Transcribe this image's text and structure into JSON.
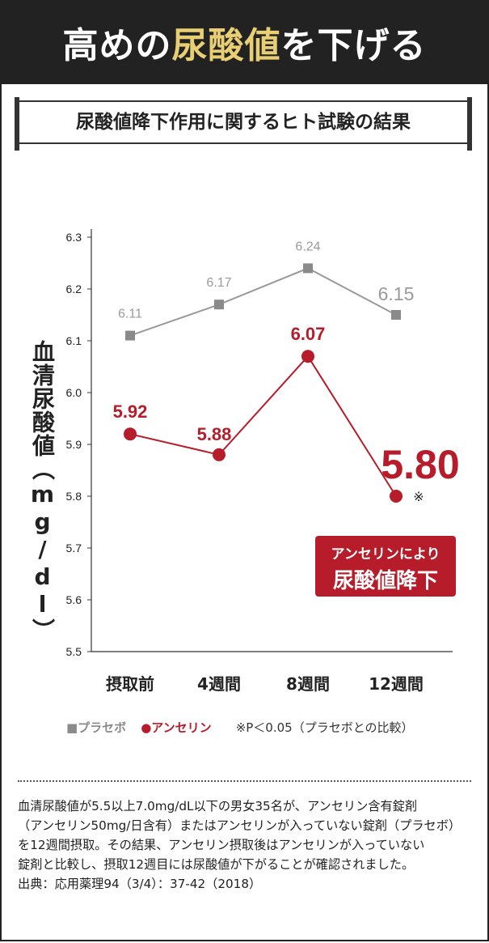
{
  "header": {
    "title_part1": "高めの",
    "title_part2": "尿酸値",
    "title_part3": "を下げる"
  },
  "subtitle": "尿酸値降下作用に関するヒト試験の結果",
  "callout": {
    "line1": "アンセリンにより",
    "line2": "尿酸値降下"
  },
  "legend": {
    "placebo": "■プラセボ",
    "anserine": "●アンセリン",
    "note": "※P＜0.05（プラセボとの比較）"
  },
  "note_lines": [
    "血清尿酸値が5.5以上7.0mg/dL以下の男女35名が、アンセリン含有錠剤",
    "（アンセリン50mg/日含有）またはアンセリンが入っていない錠剤（プラセボ）",
    "を12週間摂取。その結果、アンセリン摂取後はアンセリンが入っていない",
    "錠剤と比較し、摂取12週目には尿酸値が下がることが確認されました。",
    "出典：応用薬理94（3/4）：37-42（2018）"
  ],
  "colors": {
    "header_bg": "#222222",
    "accent_gold": "#e8cf73",
    "anserine": "#b61c2a",
    "placebo": "#8a8a8a"
  },
  "chart_data": {
    "type": "line",
    "categories": [
      "摂取前",
      "4週間",
      "8週間",
      "12週間"
    ],
    "ylabel": "血清尿酸値（mg/dl）",
    "ylim": [
      5.5,
      6.3
    ],
    "yticks": [
      "5.5",
      "5.6",
      "5.7",
      "5.8",
      "5.9",
      "6.0",
      "6.1",
      "6.2",
      "6.3"
    ],
    "series": [
      {
        "name": "プラセボ",
        "marker": "square",
        "values": [
          6.11,
          6.17,
          6.24,
          6.15
        ],
        "labels": [
          "6.11",
          "6.17",
          "6.24",
          "6.15"
        ]
      },
      {
        "name": "アンセリン",
        "marker": "circle",
        "values": [
          5.92,
          5.88,
          6.07,
          5.8
        ],
        "labels": [
          "5.92",
          "5.88",
          "6.07",
          "5.80"
        ],
        "significance_mark": "※"
      }
    ]
  }
}
